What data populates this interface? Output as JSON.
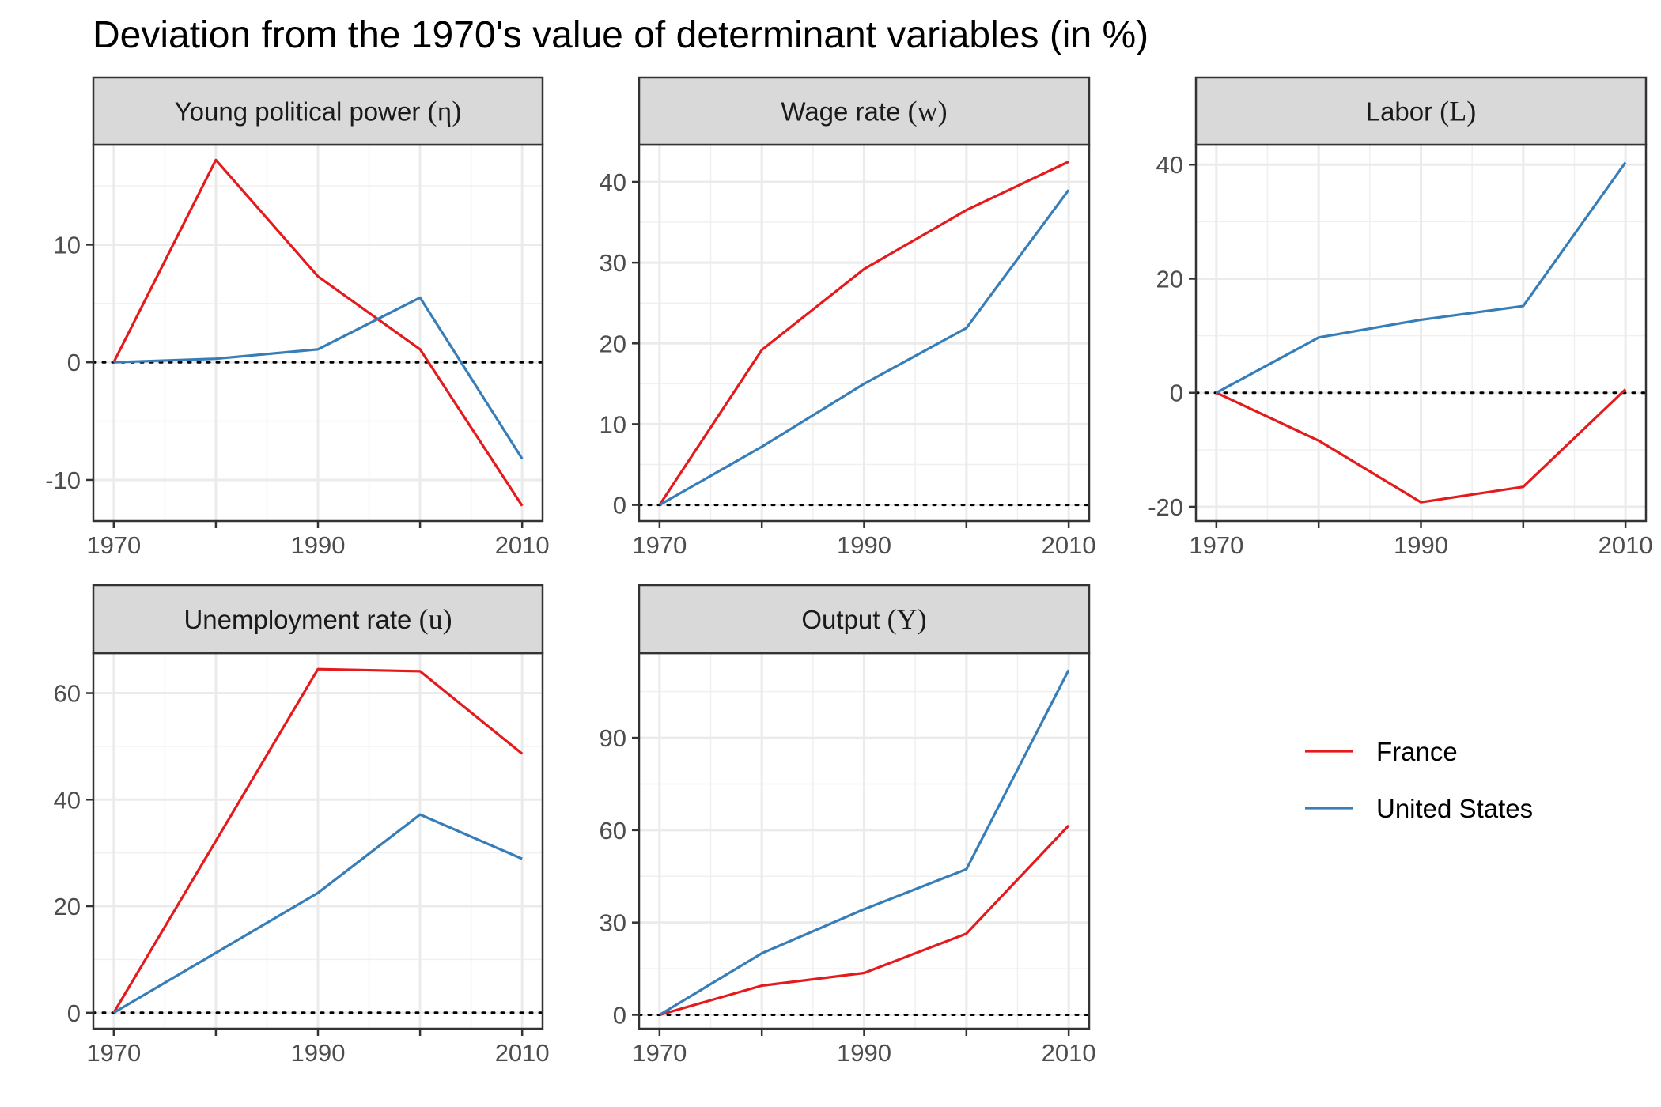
{
  "title": "Deviation from the 1970's value of determinant variables (in %)",
  "colors": {
    "France": "#e41a1c",
    "United States": "#377eb8"
  },
  "legend": [
    {
      "name": "France",
      "color": "#e41a1c"
    },
    {
      "name": "United States",
      "color": "#377eb8"
    }
  ],
  "chart_data": [
    {
      "type": "line",
      "title_text": "Young political power",
      "title_symbol": "(η)",
      "x": [
        1970,
        1980,
        1990,
        2000,
        2010
      ],
      "xlim": [
        1970,
        2010
      ],
      "ylim": [
        -13.5,
        18.5
      ],
      "xticks": [
        1970,
        1990,
        2010
      ],
      "xminor": [
        1980,
        2000
      ],
      "yticks": [
        -10,
        0,
        10
      ],
      "ytick_labels": [
        "-10",
        "0",
        "10"
      ],
      "series": [
        {
          "name": "France",
          "values": [
            0,
            17.2,
            7.3,
            1.1,
            -12.2
          ]
        },
        {
          "name": "United States",
          "values": [
            0,
            0.3,
            1.1,
            5.5,
            -8.2
          ]
        }
      ]
    },
    {
      "type": "line",
      "title_text": "Wage rate",
      "title_symbol": "(w)",
      "x": [
        1970,
        1980,
        1990,
        2000,
        2010
      ],
      "xlim": [
        1970,
        2010
      ],
      "ylim": [
        -2,
        44.6
      ],
      "xticks": [
        1970,
        1990,
        2010
      ],
      "xminor": [
        1980,
        2000
      ],
      "yticks": [
        0,
        10,
        20,
        30,
        40
      ],
      "ytick_labels": [
        "0",
        "10",
        "20",
        "30",
        "40"
      ],
      "series": [
        {
          "name": "France",
          "values": [
            0,
            19.2,
            29.2,
            36.5,
            42.5
          ]
        },
        {
          "name": "United States",
          "values": [
            0,
            7.2,
            15,
            21.9,
            39
          ]
        }
      ]
    },
    {
      "type": "line",
      "title_text": "Labor",
      "title_symbol": "(L)",
      "x": [
        1970,
        1980,
        1990,
        2000,
        2010
      ],
      "xlim": [
        1970,
        2010
      ],
      "ylim": [
        -22.5,
        43.5
      ],
      "xticks": [
        1970,
        1990,
        2010
      ],
      "xminor": [
        1980,
        2000
      ],
      "yticks": [
        -20,
        0,
        20,
        40
      ],
      "ytick_labels": [
        "-20",
        "0",
        "20",
        "40"
      ],
      "series": [
        {
          "name": "France",
          "values": [
            0,
            -8.4,
            -19.2,
            -16.5,
            0.6
          ]
        },
        {
          "name": "United States",
          "values": [
            0,
            9.7,
            12.8,
            15.2,
            40.4
          ]
        }
      ]
    },
    {
      "type": "line",
      "title_text": "Unemployment rate",
      "title_symbol": "(u)",
      "x": [
        1970,
        1990,
        2000,
        2010
      ],
      "xlim": [
        1970,
        2010
      ],
      "ylim": [
        -3,
        67.5
      ],
      "xticks": [
        1970,
        1990,
        2010
      ],
      "xminor": [
        1980,
        2000
      ],
      "yticks": [
        0,
        20,
        40,
        60
      ],
      "ytick_labels": [
        "0",
        "20",
        "40",
        "60"
      ],
      "series": [
        {
          "name": "France",
          "values": [
            0,
            64.5,
            64.1,
            48.6
          ]
        },
        {
          "name": "United States",
          "values": [
            0,
            22.5,
            37.2,
            28.9
          ]
        }
      ]
    },
    {
      "type": "line",
      "title_text": "Output",
      "title_symbol": "(Y)",
      "x": [
        1970,
        1980,
        1990,
        2000,
        2010
      ],
      "xlim": [
        1970,
        2010
      ],
      "ylim": [
        -4.5,
        117.5
      ],
      "xticks": [
        1970,
        1990,
        2010
      ],
      "xminor": [
        1980,
        2000
      ],
      "yticks": [
        0,
        30,
        60,
        90
      ],
      "ytick_labels": [
        "0",
        "30",
        "60",
        "90"
      ],
      "series": [
        {
          "name": "France",
          "values": [
            0,
            9.5,
            13.6,
            26.4,
            61.5
          ]
        },
        {
          "name": "United States",
          "values": [
            0,
            20,
            34.3,
            47.3,
            112
          ]
        }
      ]
    }
  ]
}
